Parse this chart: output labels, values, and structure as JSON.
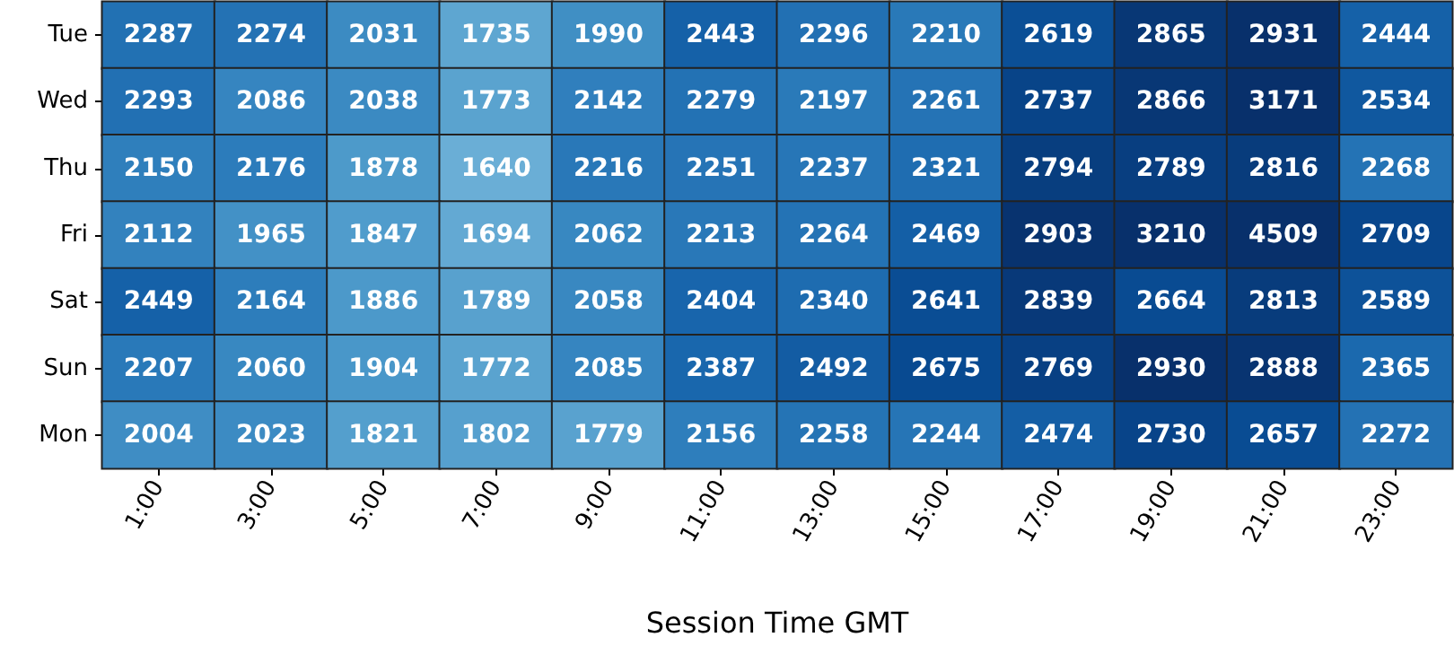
{
  "chart_data": {
    "type": "heatmap",
    "xlabel": "Session Time GMT",
    "categories": [
      "1:00",
      "3:00",
      "5:00",
      "7:00",
      "9:00",
      "11:00",
      "13:00",
      "15:00",
      "17:00",
      "19:00",
      "21:00",
      "23:00"
    ],
    "y_categories": [
      "Tue",
      "Wed",
      "Thu",
      "Fri",
      "Sat",
      "Sun",
      "Mon"
    ],
    "cells": [
      [
        2287,
        2274,
        2031,
        1735,
        1990,
        2443,
        2296,
        2210,
        2619,
        2865,
        2931,
        2444
      ],
      [
        2293,
        2086,
        2038,
        1773,
        2142,
        2279,
        2197,
        2261,
        2737,
        2866,
        3171,
        2534
      ],
      [
        2150,
        2176,
        1878,
        1640,
        2216,
        2251,
        2237,
        2321,
        2794,
        2789,
        2816,
        2268
      ],
      [
        2112,
        1965,
        1847,
        1694,
        2062,
        2213,
        2264,
        2469,
        2903,
        3210,
        4509,
        2709
      ],
      [
        2449,
        2164,
        1886,
        1789,
        2058,
        2404,
        2340,
        2641,
        2839,
        2664,
        2813,
        2589
      ],
      [
        2207,
        2060,
        1904,
        1772,
        2085,
        2387,
        2492,
        2675,
        2769,
        2930,
        2888,
        2365
      ],
      [
        2004,
        2023,
        1821,
        1802,
        1779,
        2156,
        2258,
        2244,
        2474,
        2730,
        2657,
        2272
      ]
    ],
    "data_labels": true
  }
}
